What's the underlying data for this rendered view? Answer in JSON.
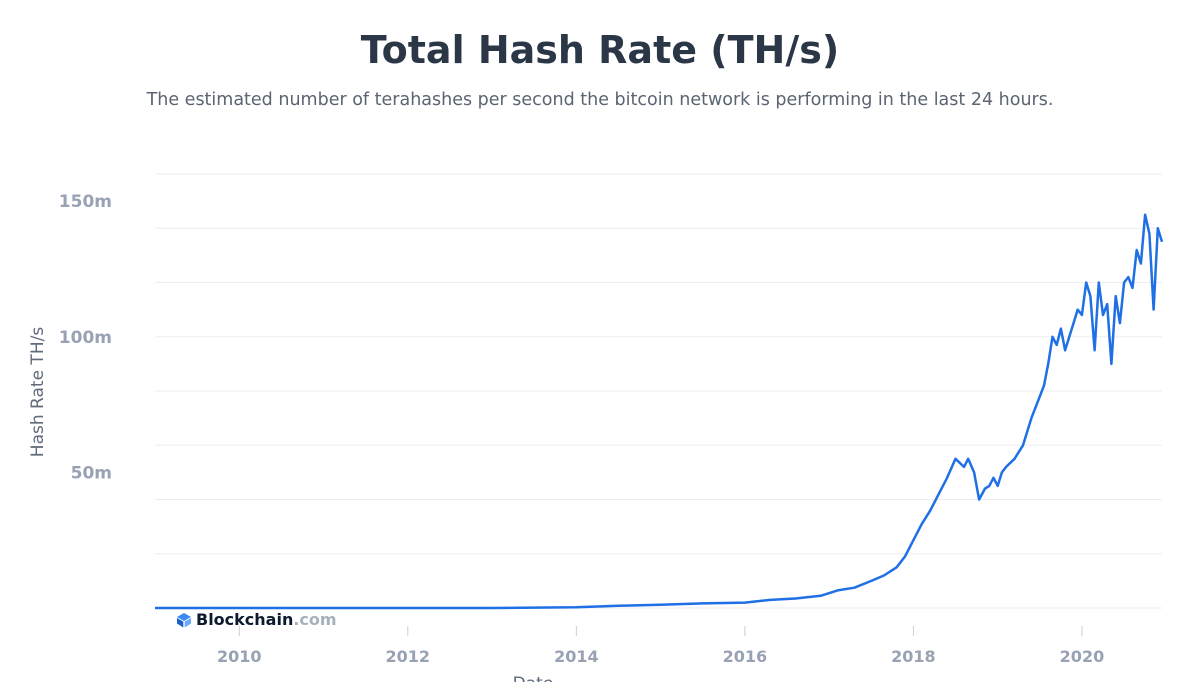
{
  "chart_data": {
    "type": "line",
    "title": "Total Hash Rate (TH/s)",
    "subtitle": "The estimated number of terahashes per second the bitcoin network is performing in the last 24 hours.",
    "xlabel": "Date",
    "ylabel": "Hash Rate TH/s",
    "y_unit": "TH/s",
    "xlim": [
      2009.0,
      2020.95
    ],
    "ylim": [
      0,
      160000000
    ],
    "yticks": [
      {
        "value": 50000000,
        "label": "50m"
      },
      {
        "value": 100000000,
        "label": "100m"
      },
      {
        "value": 150000000,
        "label": "150m"
      }
    ],
    "xticks": [
      {
        "value": 2010,
        "label": "2010"
      },
      {
        "value": 2012,
        "label": "2012"
      },
      {
        "value": 2014,
        "label": "2014"
      },
      {
        "value": 2016,
        "label": "2016"
      },
      {
        "value": 2018,
        "label": "2018"
      },
      {
        "value": 2020,
        "label": "2020"
      }
    ],
    "grid": true,
    "legend": "none",
    "series": [
      {
        "color": "#1f6fe5",
        "x": [
          2009.0,
          2010.0,
          2011.0,
          2012.0,
          2013.0,
          2014.0,
          2014.5,
          2015.0,
          2015.5,
          2016.0,
          2016.3,
          2016.6,
          2016.9,
          2017.1,
          2017.3,
          2017.5,
          2017.65,
          2017.8,
          2017.9,
          2018.0,
          2018.1,
          2018.2,
          2018.3,
          2018.4,
          2018.5,
          2018.6,
          2018.65,
          2018.72,
          2018.78,
          2018.85,
          2018.9,
          2018.95,
          2019.0,
          2019.05,
          2019.1,
          2019.2,
          2019.3,
          2019.4,
          2019.5,
          2019.55,
          2019.6,
          2019.65,
          2019.7,
          2019.75,
          2019.8,
          2019.85,
          2019.9,
          2019.95,
          2020.0,
          2020.05,
          2020.1,
          2020.15,
          2020.2,
          2020.25,
          2020.3,
          2020.35,
          2020.4,
          2020.45,
          2020.5,
          2020.55,
          2020.6,
          2020.65,
          2020.7,
          2020.75,
          2020.8,
          2020.85,
          2020.9,
          2020.95
        ],
        "values": [
          0,
          2,
          8,
          20,
          80,
          300000,
          800000,
          1200000,
          1700000,
          2000000,
          3000000,
          3500000,
          4500000,
          6500000,
          7500000,
          10000000,
          12000000,
          15000000,
          19000000,
          25000000,
          31000000,
          36000000,
          42000000,
          48000000,
          55000000,
          52000000,
          55000000,
          50000000,
          40000000,
          44000000,
          45000000,
          48000000,
          45000000,
          50000000,
          52000000,
          55000000,
          60000000,
          70000000,
          78000000,
          82000000,
          90000000,
          100000000,
          97000000,
          103000000,
          95000000,
          100000000,
          105000000,
          110000000,
          108000000,
          120000000,
          115000000,
          95000000,
          120000000,
          108000000,
          112000000,
          90000000,
          115000000,
          105000000,
          120000000,
          122000000,
          118000000,
          132000000,
          127000000,
          145000000,
          138000000,
          110000000,
          140000000,
          135000000
        ]
      }
    ]
  },
  "watermark": {
    "brand": "Blockchain",
    "suffix": ".com"
  }
}
